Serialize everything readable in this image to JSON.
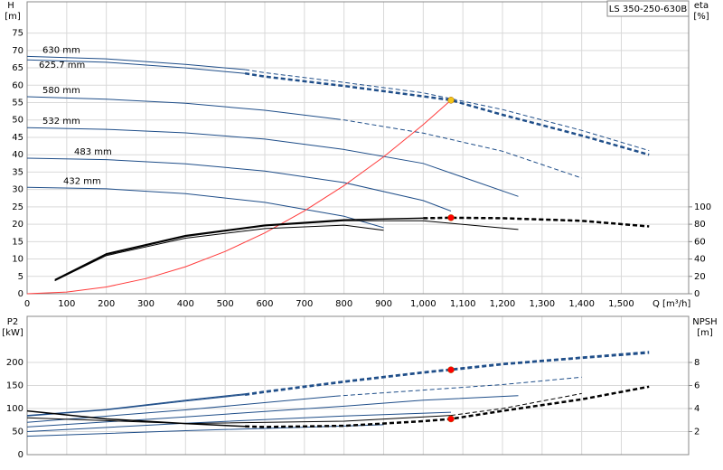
{
  "chart_data": [
    {
      "type": "line",
      "title": "LS 350-250-630B",
      "ylabel": "H",
      "yunit": "[m]",
      "y2label": "eta",
      "y2unit": "[%]",
      "xlabel": "Q [m³/h]",
      "xlim": [
        0,
        1670
      ],
      "ylim": [
        0,
        84
      ],
      "y2lim": [
        0,
        336
      ],
      "grid": true,
      "xticks": [
        0,
        100,
        200,
        300,
        400,
        500,
        600,
        700,
        800,
        900,
        {
          "value": 1000,
          "label": "1,000"
        },
        {
          "value": 1100,
          "label": "1,100"
        },
        {
          "value": 1200,
          "label": "1,200"
        },
        {
          "value": 1300,
          "label": "1,300"
        },
        {
          "value": 1400,
          "label": "1,400"
        },
        {
          "value": 1500,
          "label": "1,500"
        }
      ],
      "yticks": [
        0,
        5,
        10,
        15,
        20,
        25,
        30,
        35,
        40,
        45,
        50,
        55,
        60,
        65,
        70,
        75
      ],
      "y2ticks": [
        0,
        20,
        40,
        60,
        80,
        100
      ],
      "series": [
        {
          "name": "630 mm",
          "color": "#1f4e89",
          "width": 1,
          "dash": false,
          "x": [
            0,
            200,
            400,
            550
          ],
          "values": [
            68.3,
            67.6,
            66,
            64.5
          ]
        },
        {
          "color": "#1f4e89",
          "width": 1,
          "dash": true,
          "x": [
            550,
            600,
            800,
            1000,
            1200,
            1400,
            1570
          ],
          "values": [
            64.5,
            63.6,
            60.8,
            57.8,
            53,
            47,
            41.2
          ]
        },
        {
          "name": "625.7 mm",
          "color": "#1f4e89",
          "width": 1,
          "dash": false,
          "x": [
            0,
            200,
            400,
            550
          ],
          "values": [
            67.3,
            66.6,
            65,
            63.4
          ]
        },
        {
          "color": "#1f4e89",
          "width": 2.5,
          "dash": true,
          "x": [
            550,
            600,
            800,
            1000,
            1070,
            1200,
            1400,
            1570
          ],
          "values": [
            63.4,
            62.5,
            59.8,
            56.8,
            55.7,
            51.5,
            45.5,
            40
          ]
        },
        {
          "name": "580 mm",
          "color": "#1f4e89",
          "width": 1,
          "dash": false,
          "x": [
            0,
            200,
            400,
            600,
            780
          ],
          "values": [
            56.7,
            56,
            54.8,
            52.8,
            50.3
          ]
        },
        {
          "color": "#1f4e89",
          "width": 1,
          "dash": true,
          "x": [
            780,
            800,
            1000,
            1200,
            1400
          ],
          "values": [
            50.3,
            50,
            46.2,
            41,
            33.3
          ]
        },
        {
          "name": "532 mm",
          "color": "#1f4e89",
          "width": 1,
          "dash": false,
          "x": [
            0,
            200,
            400,
            600,
            800,
            1000,
            1240
          ],
          "values": [
            47.8,
            47.3,
            46.3,
            44.5,
            41.5,
            37.5,
            28
          ]
        },
        {
          "name": "483 mm",
          "color": "#1f4e89",
          "width": 1,
          "dash": false,
          "x": [
            0,
            200,
            400,
            600,
            800,
            1000,
            1070
          ],
          "values": [
            39,
            38.6,
            37.4,
            35.3,
            32,
            26.8,
            23.8
          ]
        },
        {
          "name": "432 mm",
          "color": "#1f4e89",
          "width": 1,
          "dash": false,
          "x": [
            0,
            200,
            400,
            600,
            800,
            900
          ],
          "values": [
            30.6,
            30.2,
            28.8,
            26.3,
            22.3,
            19
          ]
        },
        {
          "color": "#ff3b3b",
          "width": 1,
          "dash": false,
          "x": [
            0,
            100,
            200,
            300,
            400,
            500,
            600,
            700,
            800,
            900,
            1000,
            1070
          ],
          "values": [
            0,
            0.49,
            1.95,
            4.38,
            7.78,
            12.16,
            17.51,
            23.84,
            31.13,
            39.41,
            48.65,
            55.7
          ]
        },
        {
          "color": "#000000",
          "width": 1,
          "dash": false,
          "axis": "y2",
          "x": [
            70,
            200,
            400,
            600,
            800,
            900
          ],
          "values": [
            15,
            44,
            64,
            75,
            79,
            73
          ]
        },
        {
          "color": "#000000",
          "width": 1,
          "dash": false,
          "axis": "y2",
          "x": [
            70,
            200,
            400,
            600,
            800,
            1000,
            1240
          ],
          "values": [
            15,
            45,
            66,
            78,
            84,
            84,
            74
          ]
        },
        {
          "color": "#000000",
          "width": 1.5,
          "dash": false,
          "axis": "y2",
          "x": [
            70,
            200,
            400,
            600,
            800,
            1000
          ],
          "values": [
            16,
            46,
            67,
            79,
            85,
            87
          ]
        },
        {
          "color": "#000000",
          "width": 1,
          "dash": true,
          "axis": "y2",
          "x": [
            1000,
            1200,
            1400,
            1570
          ],
          "values": [
            87,
            87,
            84,
            78
          ]
        },
        {
          "color": "#000000",
          "width": 2.5,
          "dash": true,
          "axis": "y2",
          "x": [
            1000,
            1070,
            1200,
            1400,
            1570
          ],
          "values": [
            87,
            87.5,
            87,
            84,
            77.5
          ]
        }
      ],
      "points": [
        {
          "x": 1070,
          "y": 55.7,
          "color": "#f5c518"
        },
        {
          "x": 1070,
          "y": 87.5,
          "axis": "y2",
          "color": "#ff0000"
        }
      ]
    },
    {
      "type": "line",
      "ylabel": "P2",
      "yunit": "[kW]",
      "y2label": "NPSH",
      "y2unit": "[m]",
      "ylim": [
        0,
        300
      ],
      "y2lim": [
        0,
        12
      ],
      "grid": true,
      "yticks": [
        0,
        50,
        100,
        150,
        200
      ],
      "y2ticks": [
        2,
        4,
        6,
        8
      ],
      "series": [
        {
          "color": "#1f4e89",
          "width": 1,
          "dash": false,
          "x": [
            0,
            200,
            400,
            550
          ],
          "values": [
            85,
            98,
            118,
            132
          ]
        },
        {
          "color": "#1f4e89",
          "width": 1,
          "dash": true,
          "x": [
            550,
            600,
            800,
            1000,
            1200,
            1400,
            1570
          ],
          "values": [
            132,
            138,
            160,
            180,
            198,
            212,
            224
          ]
        },
        {
          "color": "#1f4e89",
          "width": 1,
          "dash": false,
          "x": [
            0,
            200,
            400,
            550
          ],
          "values": [
            84,
            97,
            116,
            130
          ]
        },
        {
          "color": "#1f4e89",
          "width": 2.5,
          "dash": true,
          "x": [
            550,
            600,
            800,
            1000,
            1070,
            1200,
            1400,
            1570
          ],
          "values": [
            130,
            136,
            158,
            178,
            184,
            196,
            210,
            221
          ]
        },
        {
          "color": "#1f4e89",
          "width": 1,
          "dash": false,
          "x": [
            0,
            400,
            780
          ],
          "values": [
            70,
            97,
            127
          ]
        },
        {
          "color": "#1f4e89",
          "width": 1,
          "dash": true,
          "x": [
            780,
            1000,
            1200,
            1400
          ],
          "values": [
            127,
            140,
            152,
            168
          ]
        },
        {
          "color": "#1f4e89",
          "width": 1,
          "dash": false,
          "x": [
            0,
            400,
            800,
            1000,
            1240
          ],
          "values": [
            60,
            82,
            105,
            118,
            128
          ]
        },
        {
          "color": "#1f4e89",
          "width": 1,
          "dash": false,
          "x": [
            0,
            400,
            800,
            1070
          ],
          "values": [
            50,
            68,
            84,
            92
          ]
        },
        {
          "color": "#1f4e89",
          "width": 1,
          "dash": false,
          "x": [
            0,
            400,
            800,
            900
          ],
          "values": [
            40,
            52,
            62,
            65
          ]
        },
        {
          "color": "#000000",
          "width": 1.5,
          "dash": false,
          "axis": "y2",
          "x": [
            0,
            200,
            400,
            550
          ],
          "values": [
            3.8,
            3.1,
            2.7,
            2.45
          ]
        },
        {
          "color": "#000000",
          "width": 2.5,
          "dash": true,
          "axis": "y2",
          "x": [
            550,
            600,
            800,
            1000,
            1070,
            1200,
            1400,
            1570
          ],
          "values": [
            2.45,
            2.4,
            2.5,
            2.9,
            3.1,
            3.8,
            4.8,
            5.9
          ]
        },
        {
          "color": "#000000",
          "width": 1,
          "dash": false,
          "axis": "y2",
          "x": [
            0,
            400,
            800,
            1070
          ],
          "values": [
            3.2,
            2.7,
            2.9,
            3.4
          ]
        },
        {
          "color": "#000000",
          "width": 1,
          "dash": true,
          "axis": "y2",
          "x": [
            1070,
            1200,
            1400
          ],
          "values": [
            3.4,
            4,
            5.3
          ]
        }
      ],
      "points": [
        {
          "x": 1070,
          "y": 184,
          "color": "#ff0000"
        },
        {
          "x": 1070,
          "y": 3.1,
          "axis": "y2",
          "color": "#ff0000"
        }
      ]
    }
  ]
}
